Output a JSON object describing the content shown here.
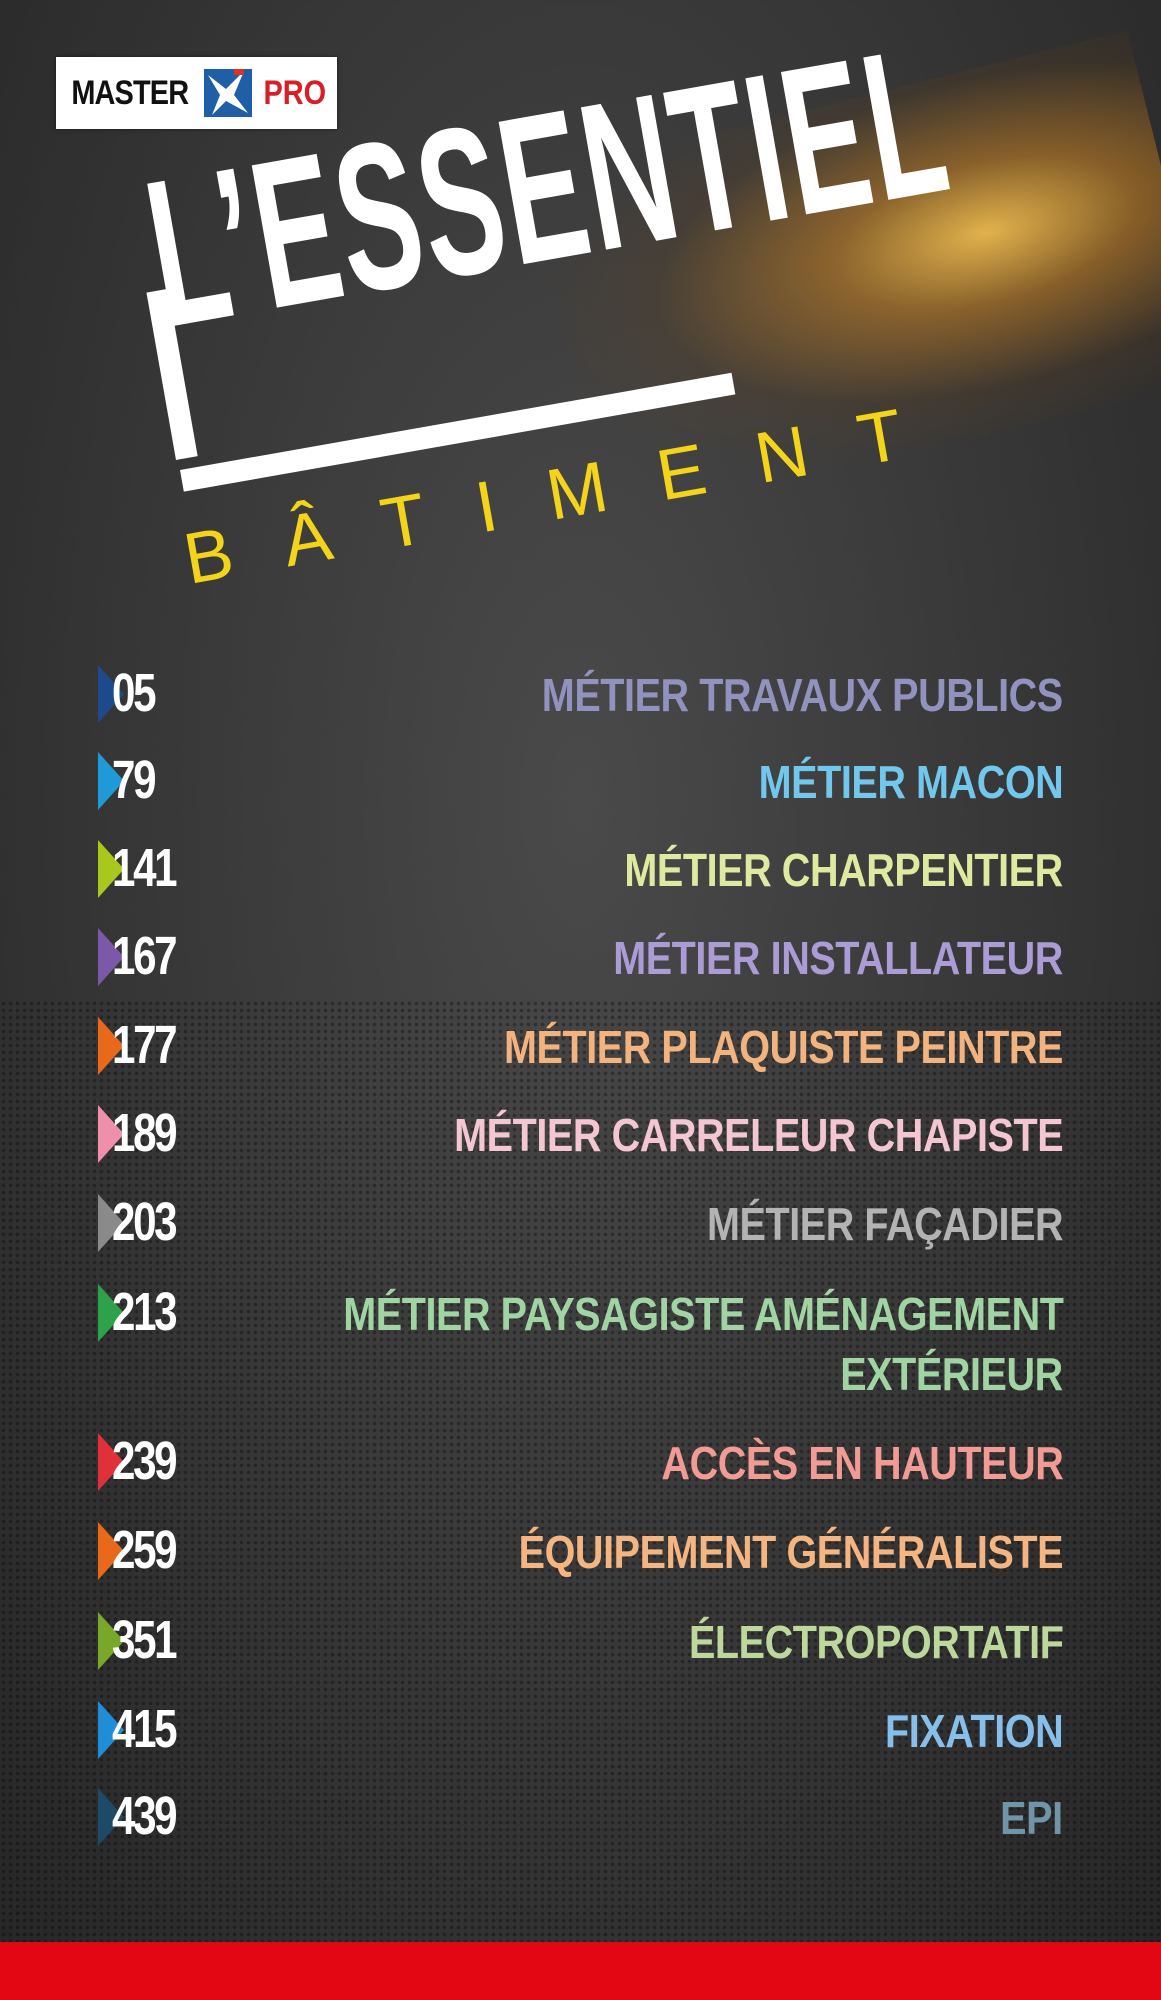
{
  "logo": {
    "text_left": "MASTER",
    "text_right": "PRO"
  },
  "title": {
    "main": "L’ESSENTIEL",
    "sub": "BÂTIMENT"
  },
  "colors": {
    "brand_red": "#e30613",
    "title_yellow": "#f3d41b"
  },
  "toc": [
    {
      "page": "05",
      "label": "MÉTIER TRAVAUX PUBLICS",
      "color": "#9192bd",
      "marker": "#1e4a8c"
    },
    {
      "page": "79",
      "label": "MÉTIER MACON",
      "color": "#72c7ec",
      "marker": "#1f9ad6"
    },
    {
      "page": "141",
      "label": "MÉTIER CHARPENTIER",
      "color": "#dfeaa0",
      "marker": "#a8c81e"
    },
    {
      "page": "167",
      "label": "MÉTIER INSTALLATEUR",
      "color": "#ab9cd6",
      "marker": "#7b58a8"
    },
    {
      "page": "177",
      "label": "MÉTIER PLAQUISTE PEINTRE",
      "color": "#f3b37e",
      "marker": "#e8691a"
    },
    {
      "page": "189",
      "label": "MÉTIER CARRELEUR CHAPISTE",
      "color": "#f4c6d2",
      "marker": "#ee8fab"
    },
    {
      "page": "203",
      "label": "MÉTIER FAÇADIER",
      "color": "#b3b3b3",
      "marker": "#8a8a8a"
    },
    {
      "page": "213",
      "label": "MÉTIER PAYSAGISTE AMÉNAGEMENT",
      "label2": "EXTÉRIEUR",
      "color": "#a0d5a3",
      "marker": "#2ea24a"
    },
    {
      "page": "239",
      "label": "ACCÈS EN HAUTEUR",
      "color": "#f29a94",
      "marker": "#e0303a"
    },
    {
      "page": "259",
      "label": "ÉQUIPEMENT GÉNÉRALISTE",
      "color": "#f5b580",
      "marker": "#e8691a"
    },
    {
      "page": "351",
      "label": "ÉLECTROPORTATIF",
      "color": "#bcd89c",
      "marker": "#78a82a"
    },
    {
      "page": "415",
      "label": "FIXATION",
      "color": "#86c0ea",
      "marker": "#1f8ed6"
    },
    {
      "page": "439",
      "label": "EPI",
      "color": "#7194a8",
      "marker": "#1d4a66"
    }
  ]
}
